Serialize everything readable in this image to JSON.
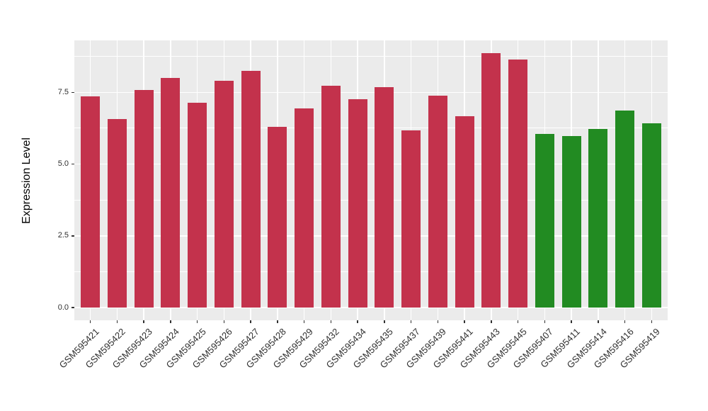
{
  "chart_data": {
    "type": "bar",
    "title": "",
    "xlabel": "",
    "ylabel": "Expression Level",
    "categories": [
      "GSM595421",
      "GSM595422",
      "GSM595423",
      "GSM595424",
      "GSM595425",
      "GSM595426",
      "GSM595427",
      "GSM595428",
      "GSM595429",
      "GSM595432",
      "GSM595434",
      "GSM595435",
      "GSM595437",
      "GSM595439",
      "GSM595441",
      "GSM595443",
      "GSM595445",
      "GSM595407",
      "GSM595411",
      "GSM595414",
      "GSM595416",
      "GSM595419"
    ],
    "values": [
      7.37,
      6.58,
      7.59,
      8.01,
      7.15,
      7.91,
      8.24,
      6.29,
      6.94,
      7.73,
      7.26,
      7.69,
      6.17,
      7.38,
      6.67,
      8.87,
      8.65,
      6.04,
      5.98,
      6.22,
      6.86,
      6.42
    ],
    "group_index": [
      0,
      0,
      0,
      0,
      0,
      0,
      0,
      0,
      0,
      0,
      0,
      0,
      0,
      0,
      0,
      0,
      0,
      1,
      1,
      1,
      1,
      1
    ],
    "palette": [
      "#C3324C",
      "#228B22"
    ],
    "y_ticks": [
      0,
      2.5,
      5,
      7.5
    ],
    "y_tick_labels": [
      "0.0",
      "2.5",
      "5.0",
      "7.5"
    ],
    "y_minor": [
      1.25,
      3.75,
      6.25,
      8.75
    ],
    "ylim": [
      -0.44,
      9.31
    ],
    "x_range": [
      0.4,
      22.6
    ],
    "bar_rel_width": 0.715,
    "grid": true,
    "legend": "none",
    "panel_bg": "#EBEBEB",
    "grid_color": "#FFFFFF",
    "axis_text_color": "#303030",
    "tick_color": "#333333"
  }
}
